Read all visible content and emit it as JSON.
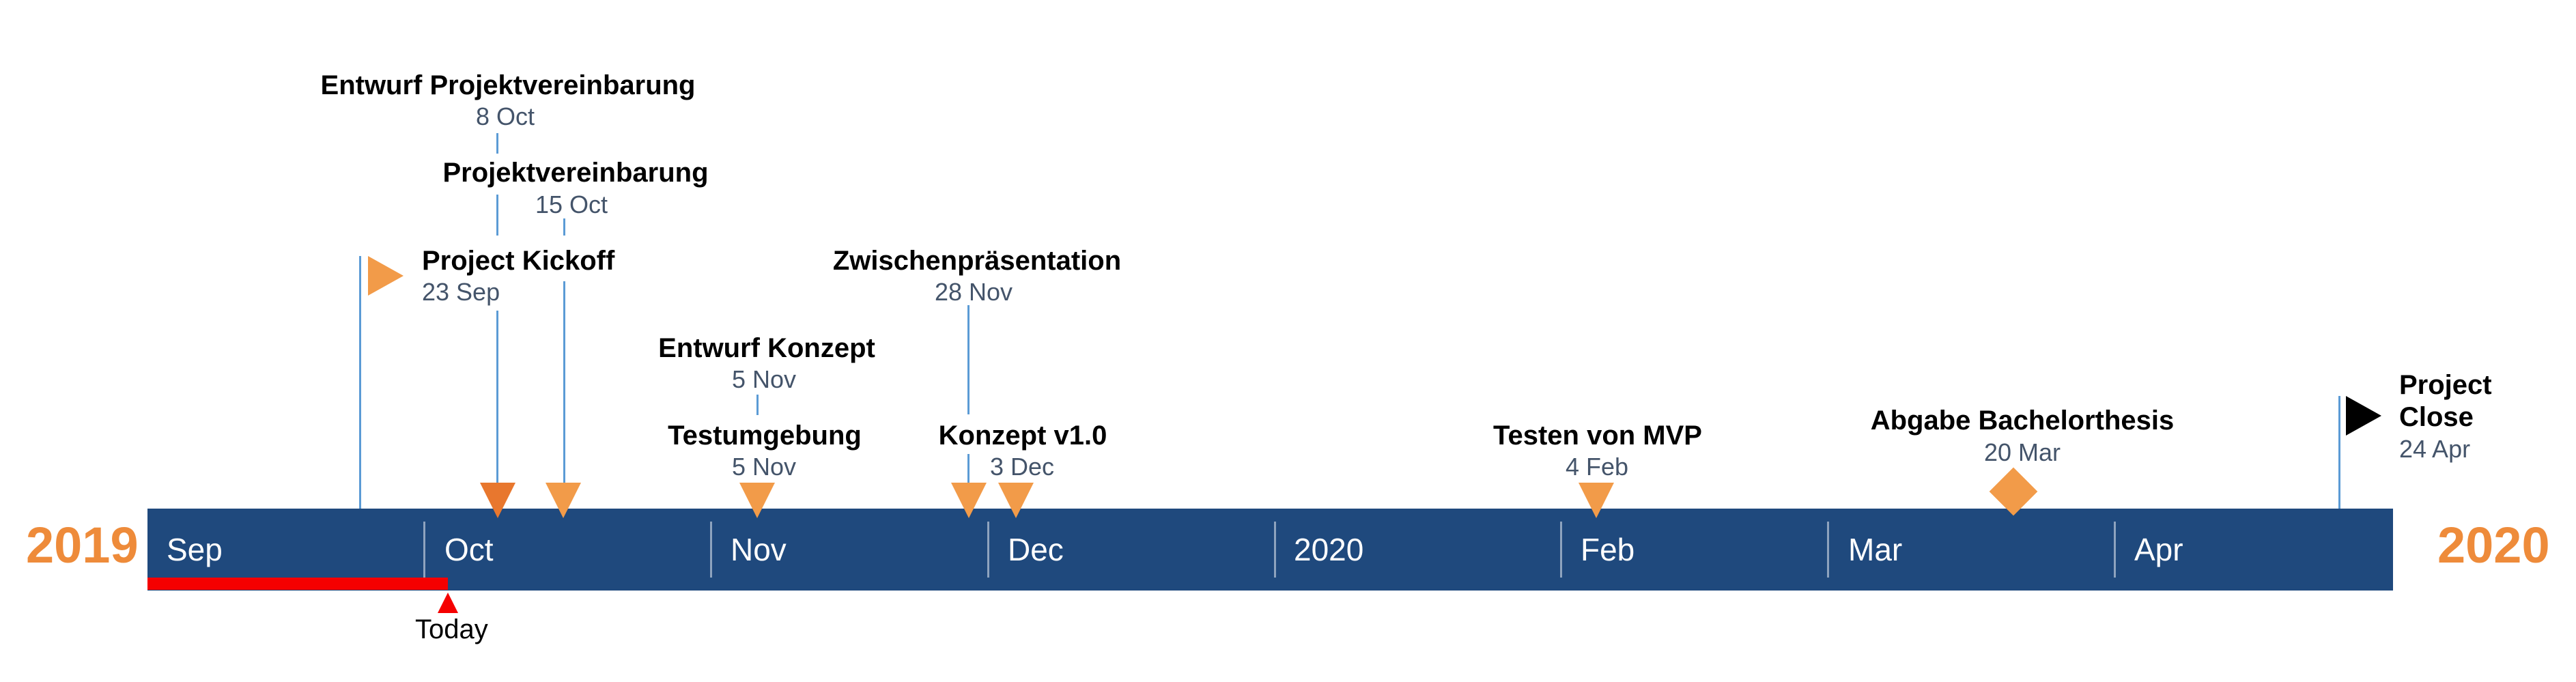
{
  "timeline": {
    "start_year": "2019",
    "end_year": "2020",
    "months": [
      "Sep",
      "Oct",
      "Nov",
      "Dec",
      "2020",
      "Feb",
      "Mar",
      "Apr"
    ],
    "today_label": "Today",
    "colors": {
      "bar": "#1F497D",
      "accent": "#F29B49",
      "year": "#EE8B3A",
      "progress": "#F50000",
      "stem": "#5B9BD5",
      "date_text": "#44546A"
    }
  },
  "milestones": {
    "entwurf_projektvereinbarung": {
      "title": "Entwurf Projektvereinbarung",
      "date": "8 Oct"
    },
    "projektvereinbarung": {
      "title": "Projektvereinbarung",
      "date": "15 Oct"
    },
    "project_kickoff": {
      "title": "Project Kickoff",
      "date": "23 Sep"
    },
    "zwischenpraesentation": {
      "title": "Zwischenpräsentation",
      "date": "28 Nov"
    },
    "entwurf_konzept": {
      "title": "Entwurf Konzept",
      "date": "5 Nov"
    },
    "testumgebung": {
      "title": "Testumgebung",
      "date": "5 Nov"
    },
    "konzept_v1": {
      "title": "Konzept v1.0",
      "date": "3 Dec"
    },
    "testen_mvp": {
      "title": "Testen von MVP",
      "date": "4 Feb"
    },
    "abgabe_bachelorthesis": {
      "title": "Abgabe Bachelorthesis",
      "date": "20 Mar"
    },
    "project_close": {
      "title_line1": "Project",
      "title_line2": "Close",
      "date": "24 Apr"
    }
  }
}
